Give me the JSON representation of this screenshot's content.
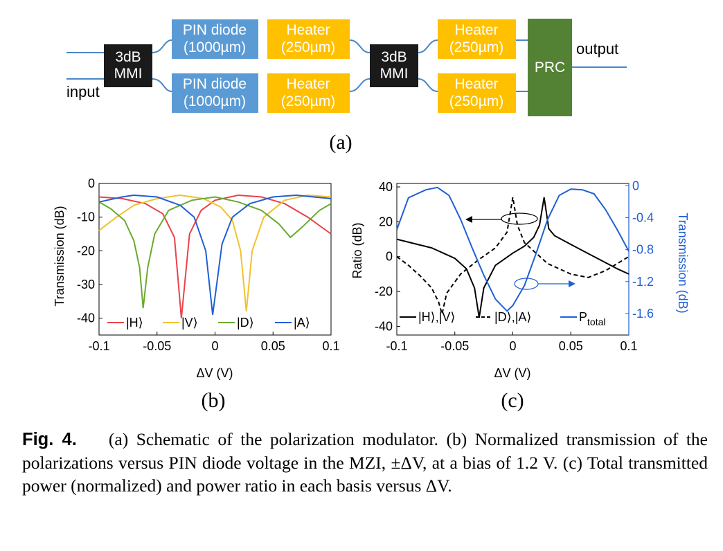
{
  "schematic": {
    "mmi1": [
      "3dB",
      "MMI"
    ],
    "mmi2": [
      "3dB",
      "MMI"
    ],
    "pin_top": [
      "PIN diode",
      "(1000µm)"
    ],
    "pin_bottom": [
      "PIN diode",
      "(1000µm)"
    ],
    "heater_1": [
      "Heater",
      "(250µm)"
    ],
    "heater_2": [
      "Heater",
      "(250µm)"
    ],
    "heater_3": [
      "Heater",
      "(250µm)"
    ],
    "heater_4": [
      "Heater",
      "(250µm)"
    ],
    "prc": "PRC",
    "input_label": "input",
    "output_label": "output",
    "colors": {
      "mmi": "#1a1a1a",
      "pin": "#5b9bd5",
      "heater": "#ffc000",
      "prc": "#548235",
      "waveguide": "#4a86c5"
    },
    "sublabel": "(a)"
  },
  "panel_b": {
    "sublabel": "(b)",
    "chart_data": {
      "type": "line",
      "xlabel": "ΔV (V)",
      "ylabel": "Transmission (dB)",
      "xlim": [
        -0.1,
        0.1
      ],
      "ylim": [
        -45,
        0
      ],
      "xticks": [
        "-0.1",
        "-0.05",
        "0",
        "0.05",
        "0.1"
      ],
      "yticks": [
        "0",
        "-10",
        "-20",
        "-30",
        "-40"
      ],
      "legend_position": "bottom",
      "series": [
        {
          "name": "|H⟩",
          "color": "#e8434b",
          "x": [
            -0.1,
            -0.08,
            -0.06,
            -0.045,
            -0.035,
            -0.029,
            -0.022,
            -0.012,
            0.0,
            0.02,
            0.04,
            0.06,
            0.08,
            0.1
          ],
          "y": [
            -4,
            -4.5,
            -6,
            -9,
            -16,
            -40,
            -15,
            -8,
            -5,
            -3.5,
            -4,
            -6,
            -10,
            -15
          ]
        },
        {
          "name": "|V⟩",
          "color": "#f2c12e",
          "x": [
            -0.1,
            -0.085,
            -0.07,
            -0.05,
            -0.03,
            -0.01,
            0.005,
            0.015,
            0.022,
            0.027,
            0.032,
            0.042,
            0.06,
            0.08,
            0.1
          ],
          "y": [
            -14,
            -10,
            -6.5,
            -4.5,
            -3.5,
            -4.5,
            -7,
            -11,
            -20,
            -38,
            -20,
            -10,
            -5,
            -3.5,
            -4
          ]
        },
        {
          "name": "|D⟩",
          "color": "#6aaa2e",
          "x": [
            -0.1,
            -0.09,
            -0.078,
            -0.07,
            -0.065,
            -0.062,
            -0.058,
            -0.052,
            -0.04,
            -0.02,
            0.0,
            0.02,
            0.04,
            0.055,
            0.065,
            0.075,
            0.09,
            0.1
          ],
          "y": [
            -5.5,
            -7.5,
            -11,
            -17,
            -25,
            -37,
            -25,
            -15,
            -8,
            -5,
            -4,
            -5.5,
            -8,
            -12,
            -16,
            -13,
            -8,
            -6
          ]
        },
        {
          "name": "|A⟩",
          "color": "#1f5fd6",
          "x": [
            -0.1,
            -0.08,
            -0.07,
            -0.05,
            -0.03,
            -0.018,
            -0.008,
            -0.002,
            0.006,
            0.015,
            0.03,
            0.05,
            0.07,
            0.085,
            0.1
          ],
          "y": [
            -5.5,
            -4,
            -3.5,
            -4,
            -6.5,
            -10,
            -20,
            -39,
            -18,
            -10,
            -6,
            -4,
            -3.5,
            -4,
            -4.5
          ]
        }
      ]
    }
  },
  "panel_c": {
    "sublabel": "(c)",
    "chart_data": {
      "type": "line",
      "xlabel": "ΔV (V)",
      "ylabel": "Ratio (dB)",
      "y2label": "Transmission (dB)",
      "xlim": [
        -0.1,
        0.1
      ],
      "ylim": [
        -45,
        42
      ],
      "y2lim": [
        -1.87,
        0.03
      ],
      "xticks": [
        "-0.1",
        "-0.05",
        "0",
        "0.05",
        "0.1"
      ],
      "yticks": [
        "40",
        "20",
        "0",
        "-20",
        "-40"
      ],
      "y2ticks": [
        "0",
        "-0.4",
        "-0.8",
        "-1.2",
        "-1.6"
      ],
      "legend_position": "bottom",
      "series": [
        {
          "name": "|H⟩,|V⟩",
          "color": "#000000",
          "style": "solid",
          "axis": "left",
          "x": [
            -0.1,
            -0.07,
            -0.05,
            -0.04,
            -0.033,
            -0.029,
            -0.025,
            -0.015,
            0.0,
            0.01,
            0.018,
            0.023,
            0.027,
            0.031,
            0.036,
            0.05,
            0.07,
            0.09,
            0.1
          ],
          "y": [
            10,
            5,
            -1,
            -7,
            -18,
            -35,
            -18,
            -5,
            2,
            6,
            11,
            18,
            34,
            16,
            12,
            7,
            0,
            -7,
            -10
          ]
        },
        {
          "name": "|D⟩,|A⟩",
          "color": "#000000",
          "style": "dashed",
          "axis": "left",
          "x": [
            -0.1,
            -0.09,
            -0.08,
            -0.07,
            -0.064,
            -0.061,
            -0.057,
            -0.045,
            -0.03,
            -0.015,
            -0.005,
            0.0,
            0.004,
            0.01,
            0.03,
            0.05,
            0.065,
            0.08,
            0.1
          ],
          "y": [
            0,
            -5,
            -11,
            -18,
            -26,
            -33,
            -21,
            -10,
            -2,
            5,
            14,
            34,
            18,
            8,
            -4,
            -10,
            -12,
            -8,
            0
          ]
        },
        {
          "name": "P_total",
          "color": "#1f5fd6",
          "style": "solid",
          "axis": "right",
          "x": [
            -0.1,
            -0.09,
            -0.075,
            -0.065,
            -0.055,
            -0.045,
            -0.035,
            -0.025,
            -0.015,
            -0.005,
            0.0,
            0.01,
            0.02,
            0.03,
            0.04,
            0.05,
            0.06,
            0.07,
            0.08,
            0.09,
            0.1
          ],
          "y": [
            -0.55,
            -0.15,
            -0.05,
            -0.02,
            -0.12,
            -0.42,
            -0.78,
            -1.12,
            -1.42,
            -1.57,
            -1.5,
            -1.25,
            -0.85,
            -0.42,
            -0.12,
            -0.04,
            -0.05,
            -0.1,
            -0.3,
            -0.55,
            -0.82
          ]
        }
      ]
    }
  },
  "caption": {
    "label": "Fig. 4.",
    "text": "(a) Schematic of the polarization modulator. (b) Normalized transmission of the polarizations versus PIN diode voltage in the MZI, ±ΔV, at a bias of 1.2 V. (c) Total transmitted power (normalized) and power ratio in each basis versus ΔV."
  }
}
